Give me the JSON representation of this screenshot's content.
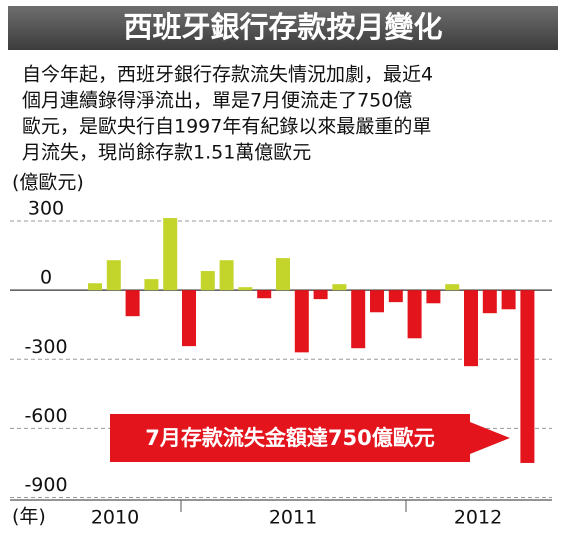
{
  "chart_data": {
    "type": "bar",
    "title": "西班牙銀行存款按月變化",
    "subtitle_lines": [
      "自今年起，西班牙銀行存款流失情況加劇，最近4",
      "個月連續錄得淨流出，單是7月便流走了750億",
      "歐元，是歐央行自1997年有紀錄以來最嚴重的單",
      "月流失，現尚餘存款1.51萬億歐元"
    ],
    "y_label": "(億歐元)",
    "x_label": "(年)",
    "year_labels": [
      "2010",
      "2011",
      "2012"
    ],
    "annotation": "7月存款流失金額達750億歐元",
    "categories": [
      null,
      null,
      null,
      null,
      null,
      null,
      null,
      null,
      null,
      null,
      null,
      null,
      null,
      null,
      null,
      null,
      null,
      null,
      null,
      null,
      null,
      null,
      null,
      null
    ],
    "values": [
      30,
      130,
      -113,
      48,
      313,
      -243,
      83,
      130,
      13,
      -35,
      139,
      -270,
      -39,
      26,
      -252,
      -96,
      -52,
      -209,
      -57,
      26,
      -330,
      -100,
      -83,
      -750
    ],
    "colors": {
      "positive": "#c3d52b",
      "negative": "#e3141c"
    },
    "ylim": [
      -900,
      400
    ],
    "yticks": [
      300,
      0,
      -300,
      -600,
      -900
    ],
    "grid": true
  }
}
